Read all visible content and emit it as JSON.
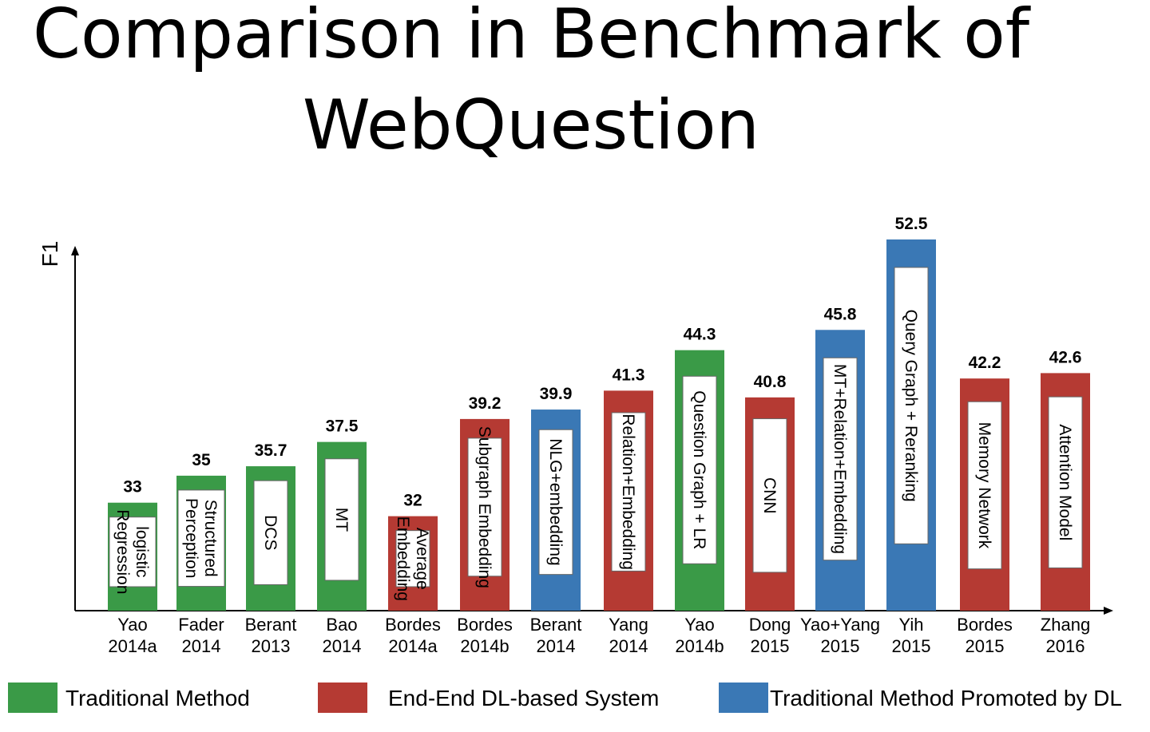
{
  "title": {
    "line1": "Comparison in Benchmark of",
    "line2": "WebQuestion"
  },
  "colors": {
    "traditional": "#3a9a47",
    "end_to_end": "#b53a33",
    "promoted": "#3a78b5"
  },
  "legend": [
    {
      "label": "Traditional Method",
      "color_key": "traditional"
    },
    {
      "label": "End-End DL-based System",
      "color_key": "end_to_end"
    },
    {
      "label": "Traditional Method Promoted by DL",
      "color_key": "promoted"
    }
  ],
  "chart_data": {
    "type": "bar",
    "title": "Comparison in Benchmark of WebQuestion",
    "xlabel": "",
    "ylabel": "F1",
    "ylim": [
      25,
      55
    ],
    "grid": false,
    "legend_position": "bottom",
    "bars": [
      {
        "cat1": "Yao",
        "cat2": "2014a",
        "value": 33,
        "value_label": "33",
        "method": [
          "logistic",
          "Regression"
        ],
        "group": "traditional"
      },
      {
        "cat1": "Fader",
        "cat2": "2014",
        "value": 35,
        "value_label": "35",
        "method": [
          "Structured",
          "Perception"
        ],
        "group": "traditional"
      },
      {
        "cat1": "Berant",
        "cat2": "2013",
        "value": 35.7,
        "value_label": "35.7",
        "method": [
          "DCS"
        ],
        "group": "traditional"
      },
      {
        "cat1": "Bao",
        "cat2": "2014",
        "value": 37.5,
        "value_label": "37.5",
        "method": [
          "MT"
        ],
        "group": "traditional"
      },
      {
        "cat1": "Bordes",
        "cat2": "2014a",
        "value": 32,
        "value_label": "32",
        "method": [
          "Average",
          "Embedding"
        ],
        "group": "end_to_end"
      },
      {
        "cat1": "Bordes",
        "cat2": "2014b",
        "value": 39.2,
        "value_label": "39.2",
        "method": [
          "Subgraph Embedding"
        ],
        "group": "end_to_end"
      },
      {
        "cat1": "Berant",
        "cat2": "2014",
        "value": 39.9,
        "value_label": "39.9",
        "method": [
          "NLG+embedding"
        ],
        "group": "promoted"
      },
      {
        "cat1": "Yang",
        "cat2": "2014",
        "value": 41.3,
        "value_label": "41.3",
        "method": [
          "Relation+Embedding"
        ],
        "group": "end_to_end"
      },
      {
        "cat1": "Yao",
        "cat2": "2014b",
        "value": 44.3,
        "value_label": "44.3",
        "method": [
          "Question Graph + LR"
        ],
        "group": "traditional"
      },
      {
        "cat1": "Dong",
        "cat2": "2015",
        "value": 40.8,
        "value_label": "40.8",
        "method": [
          "CNN"
        ],
        "group": "end_to_end"
      },
      {
        "cat1": "Yao+Yang",
        "cat2": "2015",
        "value": 45.8,
        "value_label": "45.8",
        "method": [
          "MT+Relation+Embedding"
        ],
        "group": "promoted"
      },
      {
        "cat1": "Yih",
        "cat2": "2015",
        "value": 52.5,
        "value_label": "52.5",
        "method": [
          "Query Graph + Reranking"
        ],
        "group": "promoted"
      },
      {
        "cat1": "Bordes",
        "cat2": "2015",
        "value": 42.2,
        "value_label": "42.2",
        "method": [
          "Memory Network"
        ],
        "group": "end_to_end"
      },
      {
        "cat1": "Zhang",
        "cat2": "2016",
        "value": 42.6,
        "value_label": "42.6",
        "method": [
          "Attention Model"
        ],
        "group": "end_to_end"
      }
    ]
  }
}
